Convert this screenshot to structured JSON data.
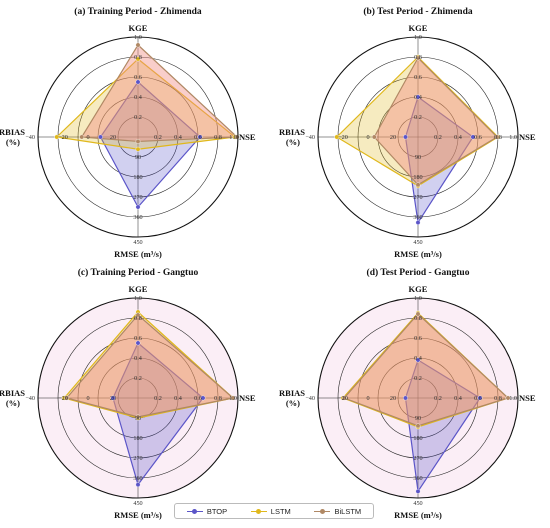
{
  "legend": [
    {
      "name": "BTOP",
      "color": "#5b55c8"
    },
    {
      "name": "LSTM",
      "color": "#e0b81c"
    },
    {
      "name": "BiLSTM",
      "color": "#b08864"
    }
  ],
  "chart_data": [
    {
      "type": "radar",
      "title": "(a) Training Period - Zhimenda",
      "axes": {
        "top": "KGE",
        "right": "NSE",
        "bottom": "RMSE (m³/s)",
        "left_line1": "RBIAS",
        "left_line2": "(%)"
      },
      "kge_ticks": [
        "0.2",
        "0.4",
        "0.6",
        "0.8",
        "1.0"
      ],
      "nse_ticks": [
        "0.2",
        "0.4",
        "0.6",
        "0.8",
        "1.0"
      ],
      "rmse_ticks": [
        "90",
        "180",
        "270",
        "360",
        "450"
      ],
      "rbias_ticks": [
        "−40",
        "−20",
        "0",
        "20",
        "40"
      ],
      "series": [
        {
          "name": "BTOP",
          "KGE": 0.55,
          "NSE": 0.62,
          "RMSE": 315,
          "RBIAS": -10
        },
        {
          "name": "LSTM",
          "KGE": 0.78,
          "NSE": 0.97,
          "RMSE": 55,
          "RBIAS": 25
        },
        {
          "name": "BiLSTM",
          "KGE": 0.92,
          "NSE": 0.99,
          "RMSE": 20,
          "RBIAS": 5
        }
      ]
    },
    {
      "type": "radar",
      "title": "(b) Test Period - Zhimenda",
      "axes": {
        "top": "KGE",
        "right": "NSE",
        "bottom": "RMSE (m³/s)",
        "left_line1": "RBIAS",
        "left_line2": "(%)"
      },
      "kge_ticks": [
        "0.2",
        "0.4",
        "0.6",
        "0.8",
        "1.0"
      ],
      "nse_ticks": [
        "0.2",
        "0.4",
        "0.6",
        "0.8",
        "1.0"
      ],
      "rmse_ticks": [
        "90",
        "180",
        "270",
        "360",
        "450"
      ],
      "rbias_ticks": [
        "−40",
        "−20",
        "0",
        "20",
        "40"
      ],
      "series": [
        {
          "name": "BTOP",
          "KGE": 0.4,
          "NSE": 0.55,
          "RMSE": 385,
          "RBIAS": -30
        },
        {
          "name": "LSTM",
          "KGE": 0.8,
          "NSE": 0.8,
          "RMSE": 220,
          "RBIAS": 25
        },
        {
          "name": "BiLSTM",
          "KGE": 0.79,
          "NSE": 0.79,
          "RMSE": 215,
          "RBIAS": -5
        }
      ]
    },
    {
      "type": "radar",
      "title": "(c) Training Period - Gangtuo",
      "axes": {
        "top": "KGE",
        "right": "NSE",
        "bottom": "RMSE (m³/s)",
        "left_line1": "RBIAS",
        "left_line2": "(%)"
      },
      "kge_ticks": [
        "0.2",
        "0.4",
        "0.6",
        "0.8",
        "1.0"
      ],
      "nse_ticks": [
        "0.2",
        "0.4",
        "0.6",
        "0.8",
        "1.0"
      ],
      "rmse_ticks": [
        "90",
        "180",
        "270",
        "360",
        "450"
      ],
      "rbias_ticks": [
        "−40",
        "−20",
        "0",
        "20",
        "40"
      ],
      "series": [
        {
          "name": "BTOP",
          "KGE": 0.55,
          "NSE": 0.65,
          "RMSE": 390,
          "RBIAS": -20
        },
        {
          "name": "LSTM",
          "KGE": 0.86,
          "NSE": 0.95,
          "RMSE": 90,
          "RBIAS": 19
        },
        {
          "name": "BiLSTM",
          "KGE": 0.83,
          "NSE": 0.95,
          "RMSE": 85,
          "RBIAS": 17
        }
      ]
    },
    {
      "type": "radar",
      "title": "(d) Test Period - Gangtuo",
      "axes": {
        "top": "KGE",
        "right": "NSE",
        "bottom": "RMSE (m³/s)",
        "left_line1": "RBIAS",
        "left_line2": "(%)"
      },
      "kge_ticks": [
        "0.2",
        "0.4",
        "0.6",
        "0.8",
        "1.0"
      ],
      "nse_ticks": [
        "0.2",
        "0.4",
        "0.6",
        "0.8",
        "1.0"
      ],
      "rmse_ticks": [
        "90",
        "180",
        "270",
        "360",
        "450"
      ],
      "rbias_ticks": [
        "−40",
        "−20",
        "0",
        "20",
        "40"
      ],
      "series": [
        {
          "name": "BTOP",
          "KGE": 0.38,
          "NSE": 0.62,
          "RMSE": 420,
          "RBIAS": -30
        },
        {
          "name": "LSTM",
          "KGE": 0.85,
          "NSE": 0.9,
          "RMSE": 130,
          "RBIAS": 20
        },
        {
          "name": "BiLSTM",
          "KGE": 0.84,
          "NSE": 0.9,
          "RMSE": 125,
          "RBIAS": 19
        }
      ]
    }
  ]
}
